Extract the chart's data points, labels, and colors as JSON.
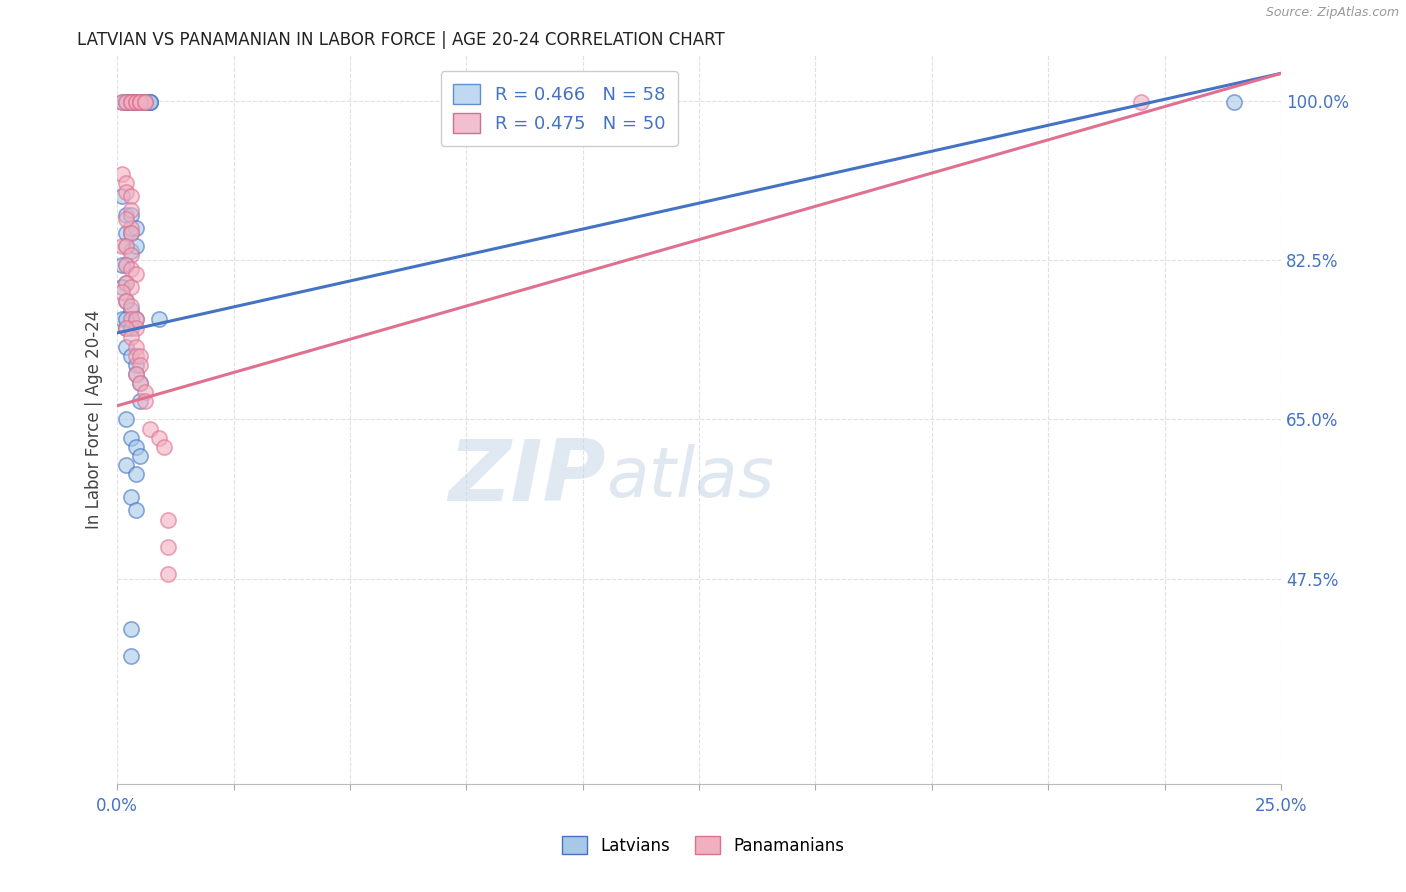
{
  "title": "LATVIAN VS PANAMANIAN IN LABOR FORCE | AGE 20-24 CORRELATION CHART",
  "source": "Source: ZipAtlas.com",
  "ylabel": "In Labor Force | Age 20-24",
  "ylabel_ticks": [
    "100.0%",
    "82.5%",
    "65.0%",
    "47.5%"
  ],
  "ylabel_tick_vals": [
    1.0,
    0.825,
    0.65,
    0.475
  ],
  "xmin": 0.0,
  "xmax": 0.25,
  "ymin": 0.25,
  "ymax": 1.05,
  "watermark_zip": "ZIP",
  "watermark_atlas": "atlas",
  "latvian_scatter": [
    [
      0.001,
      0.999
    ],
    [
      0.002,
      0.999
    ],
    [
      0.002,
      0.999
    ],
    [
      0.003,
      0.999
    ],
    [
      0.003,
      0.999
    ],
    [
      0.003,
      0.999
    ],
    [
      0.004,
      0.999
    ],
    [
      0.004,
      0.999
    ],
    [
      0.004,
      0.999
    ],
    [
      0.004,
      0.999
    ],
    [
      0.004,
      0.999
    ],
    [
      0.005,
      0.999
    ],
    [
      0.005,
      0.999
    ],
    [
      0.005,
      0.999
    ],
    [
      0.006,
      0.999
    ],
    [
      0.006,
      0.999
    ],
    [
      0.007,
      0.999
    ],
    [
      0.007,
      0.999
    ],
    [
      0.007,
      0.999
    ],
    [
      0.001,
      0.895
    ],
    [
      0.002,
      0.875
    ],
    [
      0.002,
      0.855
    ],
    [
      0.002,
      0.84
    ],
    [
      0.002,
      0.82
    ],
    [
      0.003,
      0.875
    ],
    [
      0.003,
      0.855
    ],
    [
      0.003,
      0.835
    ],
    [
      0.004,
      0.86
    ],
    [
      0.004,
      0.84
    ],
    [
      0.001,
      0.82
    ],
    [
      0.002,
      0.8
    ],
    [
      0.001,
      0.795
    ],
    [
      0.002,
      0.78
    ],
    [
      0.003,
      0.77
    ],
    [
      0.003,
      0.76
    ],
    [
      0.004,
      0.76
    ],
    [
      0.001,
      0.76
    ],
    [
      0.002,
      0.75
    ],
    [
      0.002,
      0.76
    ],
    [
      0.003,
      0.75
    ],
    [
      0.002,
      0.73
    ],
    [
      0.003,
      0.72
    ],
    [
      0.004,
      0.71
    ],
    [
      0.004,
      0.7
    ],
    [
      0.005,
      0.69
    ],
    [
      0.005,
      0.67
    ],
    [
      0.002,
      0.65
    ],
    [
      0.003,
      0.63
    ],
    [
      0.004,
      0.62
    ],
    [
      0.005,
      0.61
    ],
    [
      0.002,
      0.6
    ],
    [
      0.004,
      0.59
    ],
    [
      0.003,
      0.565
    ],
    [
      0.004,
      0.55
    ],
    [
      0.003,
      0.42
    ],
    [
      0.003,
      0.39
    ],
    [
      0.009,
      0.76
    ],
    [
      0.24,
      0.999
    ]
  ],
  "panamanian_scatter": [
    [
      0.001,
      0.999
    ],
    [
      0.002,
      0.999
    ],
    [
      0.003,
      0.999
    ],
    [
      0.003,
      0.999
    ],
    [
      0.004,
      0.999
    ],
    [
      0.004,
      0.999
    ],
    [
      0.005,
      0.999
    ],
    [
      0.005,
      0.999
    ],
    [
      0.005,
      0.999
    ],
    [
      0.006,
      0.999
    ],
    [
      0.006,
      0.999
    ],
    [
      0.001,
      0.92
    ],
    [
      0.002,
      0.91
    ],
    [
      0.002,
      0.9
    ],
    [
      0.003,
      0.895
    ],
    [
      0.003,
      0.88
    ],
    [
      0.003,
      0.86
    ],
    [
      0.002,
      0.87
    ],
    [
      0.003,
      0.855
    ],
    [
      0.001,
      0.84
    ],
    [
      0.002,
      0.84
    ],
    [
      0.003,
      0.83
    ],
    [
      0.002,
      0.82
    ],
    [
      0.003,
      0.815
    ],
    [
      0.004,
      0.81
    ],
    [
      0.002,
      0.8
    ],
    [
      0.003,
      0.795
    ],
    [
      0.001,
      0.79
    ],
    [
      0.002,
      0.78
    ],
    [
      0.003,
      0.775
    ],
    [
      0.003,
      0.76
    ],
    [
      0.004,
      0.76
    ],
    [
      0.004,
      0.75
    ],
    [
      0.002,
      0.75
    ],
    [
      0.003,
      0.74
    ],
    [
      0.004,
      0.73
    ],
    [
      0.004,
      0.72
    ],
    [
      0.005,
      0.72
    ],
    [
      0.005,
      0.71
    ],
    [
      0.004,
      0.7
    ],
    [
      0.005,
      0.69
    ],
    [
      0.006,
      0.68
    ],
    [
      0.006,
      0.67
    ],
    [
      0.007,
      0.64
    ],
    [
      0.009,
      0.63
    ],
    [
      0.01,
      0.62
    ],
    [
      0.011,
      0.54
    ],
    [
      0.011,
      0.51
    ],
    [
      0.011,
      0.48
    ],
    [
      0.22,
      0.999
    ]
  ],
  "blue_line_x": [
    0.0,
    0.25
  ],
  "blue_line_y": [
    0.745,
    1.03
  ],
  "pink_line_x": [
    0.0,
    0.25
  ],
  "pink_line_y": [
    0.665,
    1.03
  ],
  "scatter_color_latvian": "#a8c8e8",
  "scatter_color_panamanian": "#f0b0c0",
  "scatter_edgecolor_latvian": "#4472c4",
  "scatter_edgecolor_panamanian": "#e07090",
  "line_color_latvian": "#4472c4",
  "line_color_panamanian": "#e07090",
  "background_color": "#ffffff",
  "grid_color": "#e0e0e0",
  "title_color": "#222222",
  "axis_label_color": "#444444",
  "right_tick_color": "#4472c4",
  "scatter_size": 120,
  "scatter_alpha": 0.6,
  "scatter_linewidth": 1.2
}
